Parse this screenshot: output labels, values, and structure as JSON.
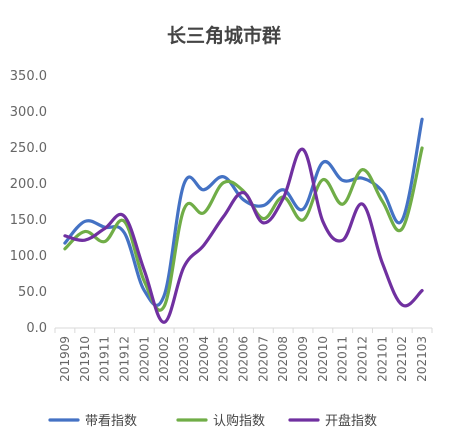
{
  "chart_data": {
    "type": "line",
    "title": "长三角城市群",
    "categories": [
      "201909",
      "201910",
      "201911",
      "201912",
      "202001",
      "202002",
      "202003",
      "202004",
      "202005",
      "202006",
      "202007",
      "202008",
      "202009",
      "202010",
      "202011",
      "202012",
      "202101",
      "202102",
      "202103"
    ],
    "y_tick_labels": [
      "0.0",
      "50.0",
      "100.0",
      "150.0",
      "200.0",
      "250.0",
      "300.0",
      "350.0"
    ],
    "ylim": [
      0,
      350
    ],
    "grid": false,
    "legend_position": "bottom",
    "series": [
      {
        "name": "带看指数",
        "color": "#4472C4",
        "values": [
          118,
          148,
          140,
          132,
          52,
          45,
          200,
          192,
          210,
          178,
          170,
          192,
          165,
          230,
          205,
          208,
          190,
          150,
          290
        ]
      },
      {
        "name": "认购指数",
        "color": "#70AD47",
        "values": [
          110,
          134,
          120,
          148,
          65,
          30,
          165,
          160,
          202,
          190,
          152,
          182,
          150,
          206,
          172,
          220,
          176,
          138,
          250
        ]
      },
      {
        "name": "开盘指数",
        "color": "#7030A0",
        "values": [
          128,
          122,
          138,
          155,
          80,
          8,
          85,
          115,
          155,
          188,
          146,
          180,
          248,
          148,
          122,
          172,
          90,
          32,
          52
        ]
      }
    ]
  }
}
